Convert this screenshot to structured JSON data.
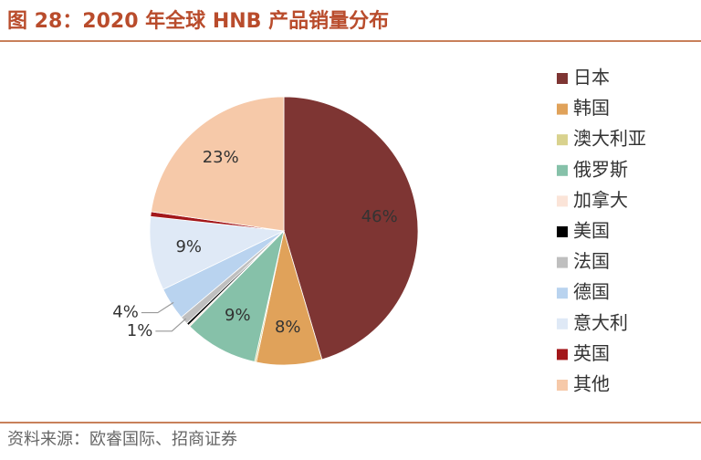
{
  "chart_data": {
    "type": "pie",
    "title": "图 28：2020 年全球 HNB 产品销量分布",
    "categories": [
      "日本",
      "韩国",
      "澳大利亚",
      "俄罗斯",
      "加拿大",
      "美国",
      "法国",
      "德国",
      "意大利",
      "英国",
      "其他"
    ],
    "values": [
      46,
      8,
      0.2,
      9,
      0.2,
      0.3,
      1,
      4,
      9,
      0.6,
      23
    ],
    "value_labels": [
      "46%",
      "8%",
      null,
      "9%",
      null,
      null,
      "1%",
      "4%",
      "9%",
      null,
      "23%"
    ],
    "colors": [
      "#7e3533",
      "#e0a25a",
      "#d9d28e",
      "#86c1a9",
      "#fbe4d8",
      "#000000",
      "#bfbfbf",
      "#b9d3ef",
      "#dfe9f6",
      "#a3171a",
      "#f6c9a9"
    ],
    "legend": "right"
  },
  "source": "资料来源：欧睿国际、招商证券"
}
